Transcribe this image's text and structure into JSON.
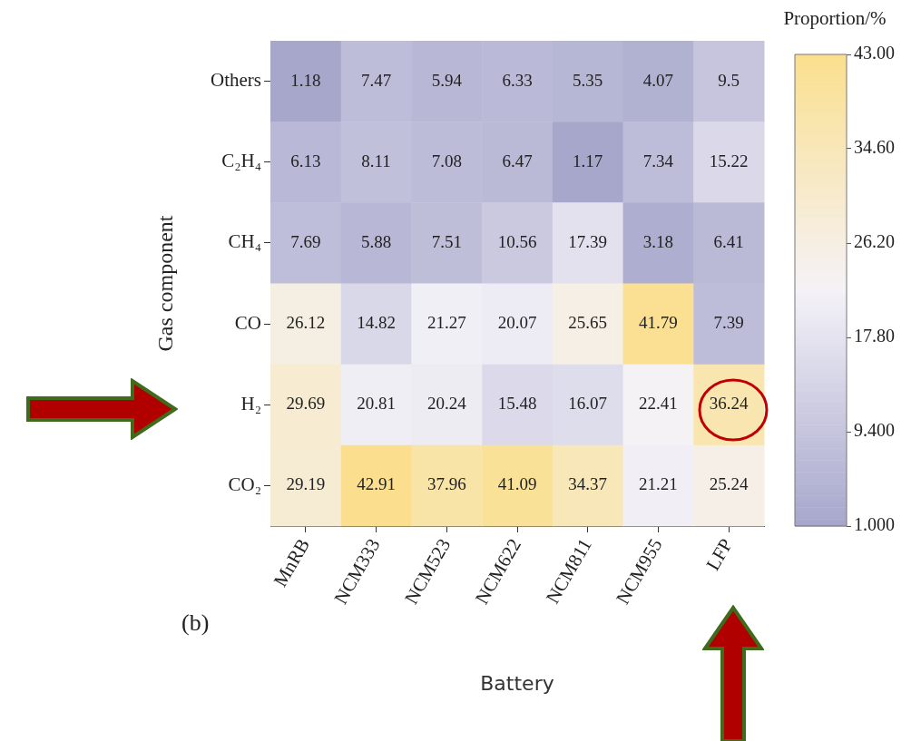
{
  "chart_data": {
    "type": "heatmap",
    "xlabel": "Battery",
    "ylabel": "Gas component",
    "clabel": "Proportion/%",
    "categories": [
      "MnRB",
      "NCM333",
      "NCM523",
      "NCM622",
      "NCM811",
      "NCM955",
      "LFP"
    ],
    "y_categories": [
      "Others",
      "C₂H₄",
      "CH₄",
      "CO",
      "H₂",
      "CO₂"
    ],
    "cells": [
      [
        1.18,
        7.47,
        5.94,
        6.33,
        5.35,
        4.07,
        9.5
      ],
      [
        6.13,
        8.11,
        7.08,
        6.47,
        1.17,
        7.34,
        15.22
      ],
      [
        7.69,
        5.88,
        7.51,
        10.56,
        17.39,
        3.18,
        6.41
      ],
      [
        26.12,
        14.82,
        21.27,
        20.07,
        25.65,
        41.79,
        7.39
      ],
      [
        29.69,
        20.81,
        20.24,
        15.48,
        16.07,
        22.41,
        36.24
      ],
      [
        29.19,
        42.91,
        37.96,
        41.09,
        34.37,
        21.21,
        25.24
      ]
    ],
    "data_labels": true,
    "clim": [
      1,
      43
    ],
    "cticks": [
      {
        "value": 1,
        "label": "1.000"
      },
      {
        "value": 9.4,
        "label": "9.400"
      },
      {
        "value": 17.8,
        "label": "17.80"
      },
      {
        "value": 26.2,
        "label": "26.20"
      },
      {
        "value": 34.6,
        "label": "34.60"
      },
      {
        "value": 43,
        "label": "43.00"
      }
    ],
    "annotations": [
      "(b)"
    ]
  }
}
